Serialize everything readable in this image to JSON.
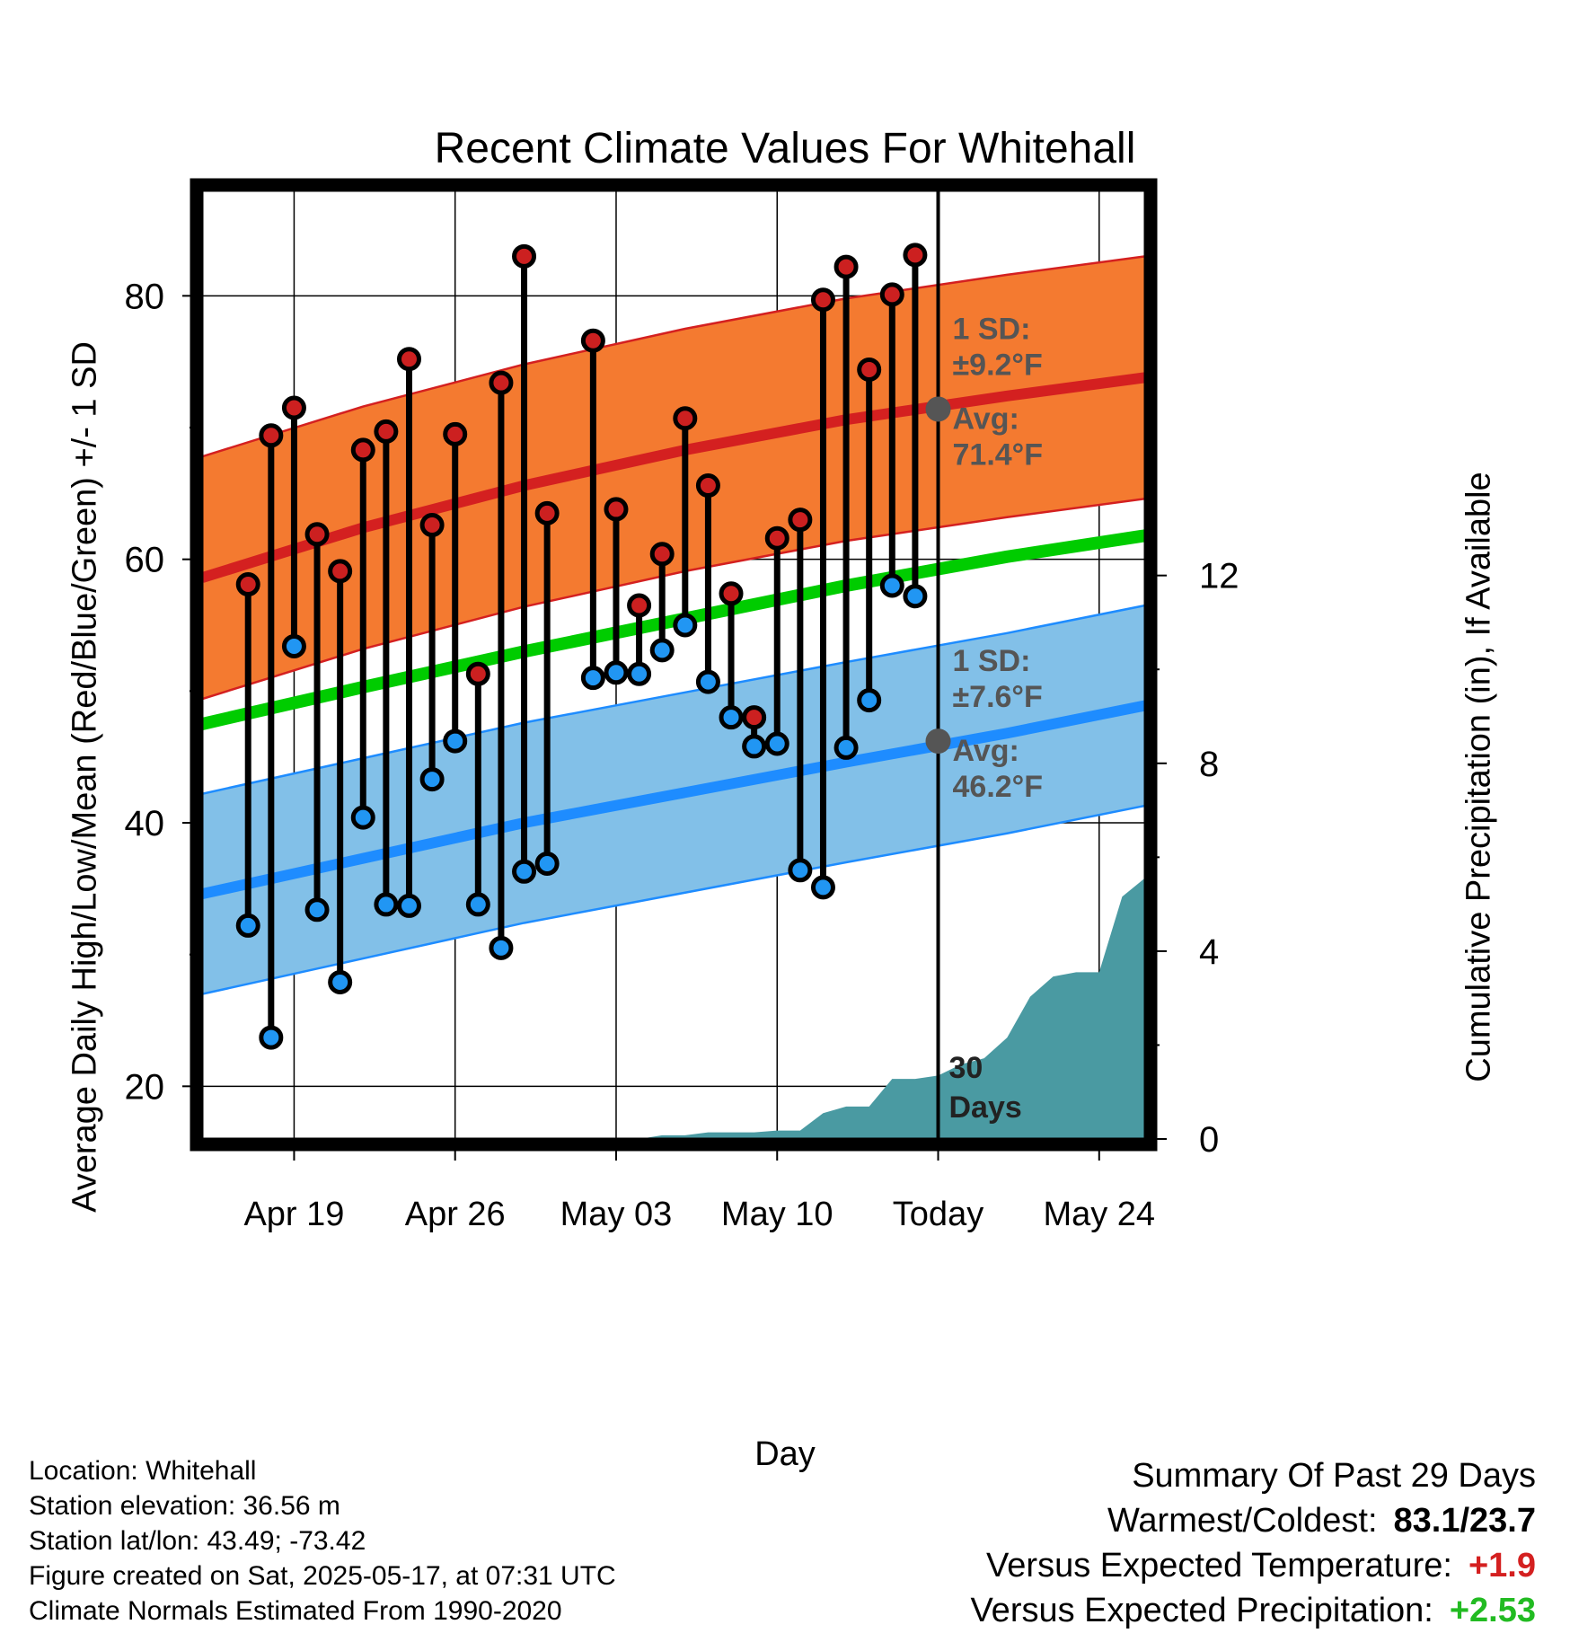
{
  "chart_data": {
    "type": "line",
    "title": "Recent Climate Values For Whitehall",
    "xlabel": "Day",
    "ylabel": "Average Daily High/Low/Mean (Red/Blue/Green) +/- 1 SD",
    "y2label": "Cumulative Precipitation (in), If Available",
    "x_tick_labels": [
      "Apr 19",
      "Apr 26",
      "May 03",
      "May 10",
      "Today",
      "May 24"
    ],
    "x_tick_days": [
      "2025-04-19",
      "2025-04-26",
      "2025-05-03",
      "2025-05-10",
      "2025-05-17",
      "2025-05-24"
    ],
    "xlim": [
      "2025-04-15",
      "2025-05-26"
    ],
    "ylim": [
      16,
      88
    ],
    "y_ticks": [
      20,
      40,
      60,
      80
    ],
    "y2lim": [
      0,
      20.2
    ],
    "y2_ticks": [
      0,
      4,
      8,
      12
    ],
    "grid": true,
    "colors": {
      "high_band": "#f47a30",
      "high_line": "#d42020",
      "low_band": "#82c0e8",
      "low_line": "#1e8cff",
      "mean_line": "#00cc00",
      "precip": "#4a9aa2",
      "high_dot": "#cc2020",
      "low_dot": "#2196f3",
      "annotation": "#555555"
    },
    "normals": {
      "dates": [
        "2025-04-15",
        "2025-04-22",
        "2025-04-29",
        "2025-05-06",
        "2025-05-13",
        "2025-05-20",
        "2025-05-26"
      ],
      "high": [
        58.6,
        62.4,
        65.6,
        68.3,
        70.6,
        72.4,
        73.8
      ],
      "low": [
        34.6,
        37.3,
        40.0,
        42.3,
        44.6,
        46.8,
        48.9
      ],
      "mean": [
        47.5,
        50.3,
        53.0,
        55.5,
        58.0,
        60.2,
        61.8
      ],
      "high_sd": 9.2,
      "low_sd": 7.6
    },
    "observed": {
      "dates": [
        "2025-04-17",
        "2025-04-18",
        "2025-04-19",
        "2025-04-20",
        "2025-04-21",
        "2025-04-22",
        "2025-04-23",
        "2025-04-24",
        "2025-04-25",
        "2025-04-26",
        "2025-04-27",
        "2025-04-28",
        "2025-04-29",
        "2025-04-30",
        "2025-05-02",
        "2025-05-03",
        "2025-05-04",
        "2025-05-05",
        "2025-05-06",
        "2025-05-07",
        "2025-05-08",
        "2025-05-09",
        "2025-05-10",
        "2025-05-11",
        "2025-05-12",
        "2025-05-13",
        "2025-05-14",
        "2025-05-15",
        "2025-05-16"
      ],
      "high": [
        58.1,
        69.4,
        71.5,
        61.9,
        59.1,
        68.3,
        69.7,
        75.2,
        62.6,
        69.5,
        51.3,
        73.4,
        83.0,
        63.5,
        76.6,
        63.8,
        56.5,
        60.4,
        70.7,
        65.6,
        57.4,
        48.0,
        61.6,
        63.0,
        79.7,
        82.2,
        74.4,
        80.1,
        83.1
      ],
      "low": [
        32.2,
        23.7,
        53.4,
        33.4,
        27.9,
        40.4,
        33.8,
        33.7,
        43.3,
        46.2,
        33.8,
        30.5,
        36.3,
        36.9,
        51.0,
        51.4,
        51.3,
        53.1,
        55.0,
        50.7,
        48.0,
        45.8,
        46.0,
        36.4,
        35.1,
        45.7,
        49.3,
        58.0,
        57.2
      ]
    },
    "precip": {
      "days": [
        16,
        17,
        18,
        19,
        20,
        21,
        22,
        23,
        24,
        25,
        26,
        27,
        28,
        29,
        30,
        31,
        32,
        33,
        34,
        35,
        36,
        37,
        38,
        39,
        40,
        41,
        42,
        43,
        44,
        45,
        46,
        47,
        48,
        49,
        50,
        51,
        52,
        53,
        54,
        55,
        56,
        57,
        58
      ],
      "cumulative": [
        0.0,
        0.0,
        0.0,
        0.0,
        0.08,
        0.08,
        0.14,
        0.14,
        0.14,
        0.18,
        0.18,
        0.55,
        0.69,
        0.69,
        1.28,
        1.28,
        1.35,
        1.59,
        1.72,
        2.16,
        3.03,
        3.46,
        3.55,
        3.55,
        5.16,
        5.56,
        5.56,
        5.56,
        5.56,
        5.56,
        5.58,
        5.58,
        5.58,
        5.58,
        5.58,
        5.58,
        5.58,
        5.58,
        5.58,
        5.58,
        5.58,
        5.58,
        5.58
      ]
    },
    "annotations": {
      "today_label": "30 Days",
      "high_sd": "1 SD:",
      "high_sd_value": "±9.2°F",
      "high_avg": "Avg:",
      "high_avg_value": "71.4°F",
      "high_avg_y": 71.4,
      "low_sd": "1 SD:",
      "low_sd_value": "±7.6°F",
      "low_avg": "Avg:",
      "low_avg_value": "46.2°F",
      "low_avg_y": 46.2
    }
  },
  "footer": {
    "location": "Location: Whitehall",
    "elevation": "Station elevation: 36.56 m",
    "latlon": "Station lat/lon: 43.49; -73.42",
    "created": "Figure created on Sat, 2025-05-17, at 07:31 UTC",
    "normals": "Climate Normals Estimated From 1990-2020"
  },
  "summary": {
    "heading": "Summary Of Past 29 Days",
    "warm_cold_label": "Warmest/Coldest:",
    "warm_cold_value": "83.1/23.7",
    "temp_label": "Versus Expected Temperature:",
    "temp_value": "+1.9",
    "temp_color": "#d42020",
    "precip_label": "Versus Expected Precipitation:",
    "precip_value": "+2.53",
    "precip_color": "#22bb22"
  }
}
